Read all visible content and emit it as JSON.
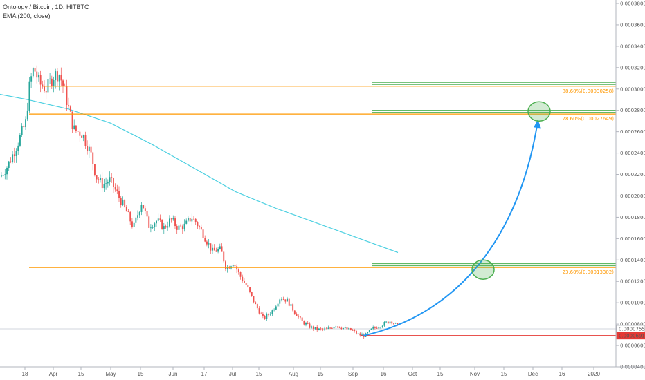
{
  "header": {
    "symbol_line": "Ontology / Bitcoin, 1D, HITBTC",
    "indicator_line": "EMA (200, close)"
  },
  "colors": {
    "up": "#26a69a",
    "down": "#ef5350",
    "ema": "#4dd0e1",
    "fib": "#ff9800",
    "zone": "#4caf50",
    "arrow": "#2196f3",
    "support": "#e53935"
  },
  "chart_data": {
    "type": "candlestick",
    "ylim": [
      4e-05,
      0.00038
    ],
    "y_ticks": [
      "0.00038000",
      "0.00036000",
      "0.00034000",
      "0.00032000",
      "0.00030000",
      "0.00028000",
      "0.00026000",
      "0.00024000",
      "0.00022000",
      "0.00020000",
      "0.00018000",
      "0.00016000",
      "0.00014000",
      "0.00012000",
      "0.00010000",
      "0.00008000",
      "0.00006000",
      "0.00004000"
    ],
    "x_ticks": [
      "18",
      "Apr",
      "15",
      "May",
      "15",
      "Jun",
      "17",
      "Jul",
      "15",
      "Aug",
      "15",
      "Sep",
      "16",
      "Oct",
      "15",
      "Nov",
      "15",
      "Dec",
      "16",
      "2020"
    ],
    "price_labels": [
      {
        "text": "0.00007559",
        "value": 7.559e-05,
        "style": "current"
      },
      {
        "text": "0.00006917",
        "value": 6.917e-05,
        "style": "support"
      }
    ],
    "fib_levels": [
      {
        "label": "88.60%(0.00030258)",
        "value": 0.00030258
      },
      {
        "label": "78.60%(0.00027649)",
        "value": 0.00027649
      },
      {
        "label": "23.60%(0.00013302)",
        "value": 0.00013302
      }
    ],
    "ema_series": {
      "name": "EMA (200, close)",
      "points": [
        [
          0,
          0.000295
        ],
        [
          40,
          0.00029
        ],
        [
          100,
          0.000281
        ],
        [
          160,
          0.000268
        ],
        [
          220,
          0.000248
        ],
        [
          280,
          0.000226
        ],
        [
          340,
          0.000204
        ],
        [
          400,
          0.000188
        ],
        [
          460,
          0.000174
        ],
        [
          520,
          0.00016
        ],
        [
          575,
          0.000147
        ]
      ]
    },
    "price_path": [
      [
        0,
        0.000218
      ],
      [
        10,
        0.000228
      ],
      [
        22,
        0.000245
      ],
      [
        36,
        0.000268
      ],
      [
        42,
        0.000305
      ],
      [
        48,
        0.00032
      ],
      [
        56,
        0.000305
      ],
      [
        66,
        0.0003
      ],
      [
        76,
        0.000312
      ],
      [
        84,
        0.000315
      ],
      [
        92,
        0.0003
      ],
      [
        98,
        0.000282
      ],
      [
        106,
        0.000262
      ],
      [
        118,
        0.000258
      ],
      [
        130,
        0.00024
      ],
      [
        138,
        0.000218
      ],
      [
        148,
        0.00021
      ],
      [
        158,
        0.000215
      ],
      [
        170,
        0.0002
      ],
      [
        182,
        0.000185
      ],
      [
        192,
        0.00017
      ],
      [
        204,
        0.000195
      ],
      [
        214,
        0.000172
      ],
      [
        226,
        0.000177
      ],
      [
        236,
        0.00017
      ],
      [
        246,
        0.000178
      ],
      [
        256,
        0.00017
      ],
      [
        266,
        0.000172
      ],
      [
        276,
        0.00018
      ],
      [
        286,
        0.000172
      ],
      [
        296,
        0.00016
      ],
      [
        306,
        0.000148
      ],
      [
        318,
        0.00015
      ],
      [
        326,
        0.000132
      ],
      [
        336,
        0.000138
      ],
      [
        346,
        0.000125
      ],
      [
        356,
        0.000115
      ],
      [
        368,
        9.8e-05
      ],
      [
        380,
        8.5e-05
      ],
      [
        392,
        9.2e-05
      ],
      [
        404,
        0.000105
      ],
      [
        414,
        0.000102
      ],
      [
        424,
        9.2e-05
      ],
      [
        436,
        8.2e-05
      ],
      [
        448,
        7.7e-05
      ],
      [
        460,
        7.5e-05
      ],
      [
        472,
        7.5e-05
      ],
      [
        484,
        7.9e-05
      ],
      [
        496,
        7.6e-05
      ],
      [
        508,
        7.4e-05
      ],
      [
        518,
        7e-05
      ],
      [
        526,
        6.9e-05
      ],
      [
        536,
        7.5e-05
      ],
      [
        546,
        7.8e-05
      ],
      [
        556,
        8.1e-05
      ],
      [
        564,
        8.3e-05
      ],
      [
        576,
        7.7e-05
      ]
    ]
  }
}
